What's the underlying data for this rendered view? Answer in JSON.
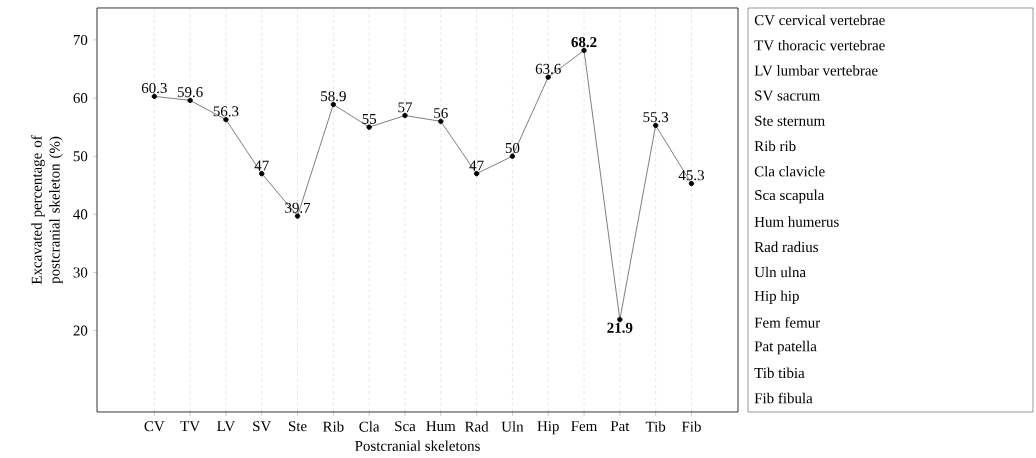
{
  "chart_data": {
    "type": "line",
    "xlabel": "Postcranial skeletons",
    "ylabel": "Excavated percentage of postcranial skeleton (%)",
    "categories": [
      "CV",
      "TV",
      "LV",
      "SV",
      "Ste",
      "Rib",
      "Cla",
      "Sca",
      "Hum",
      "Rad",
      "Uln",
      "Hip",
      "Fem",
      "Pat",
      "Tib",
      "Fib"
    ],
    "values": [
      60.3,
      59.6,
      56.3,
      47,
      39.7,
      58.9,
      55,
      57,
      56,
      47,
      50,
      63.6,
      68.2,
      21.9,
      55.3,
      45.3
    ],
    "value_labels": [
      "60.3",
      "59.6",
      "56.3",
      "47",
      "39.7",
      "58.9",
      "55",
      "57",
      "56",
      "47",
      "50",
      "63.6",
      "**68.2**",
      "**21.9**",
      "55.3",
      "45.3"
    ],
    "color": "#808080",
    "marker": "circle",
    "line_style": "solid",
    "grid": "x",
    "ylim": [
      6,
      75.5
    ],
    "yticks": [
      20,
      30,
      40,
      50,
      60,
      70
    ],
    "annotations": [
      "CV cervical vertebrae",
      "TV thoracic vertebrae",
      "LV lumbar vertebrae",
      "SV sacrum",
      "Ste sternum",
      "Rib rib",
      "Cla clavicle",
      "Sca scapula",
      "Hum humerus",
      "Rad radius",
      "Uln ulna",
      "Hip hip",
      "Fem femur",
      "Pat patella",
      "Tib tibia",
      "Fib fibula"
    ]
  }
}
